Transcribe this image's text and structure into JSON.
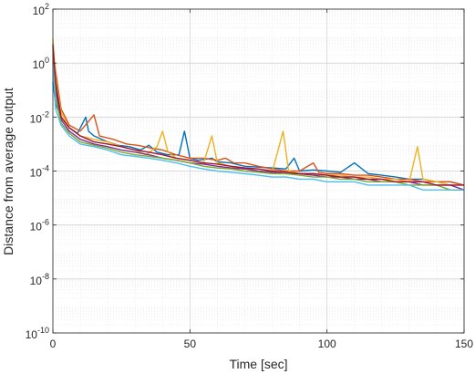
{
  "chart_data": {
    "type": "line",
    "title": "",
    "xlabel": "Time [sec]",
    "ylabel": "Distance from average output",
    "xlim": [
      0,
      150
    ],
    "ylim": [
      1e-10,
      100
    ],
    "yscale": "log",
    "grid": true,
    "minor_grid": true,
    "xticks": [
      0,
      50,
      100,
      150
    ],
    "xtick_labels": [
      "0",
      "50",
      "100",
      "150"
    ],
    "yticks": [
      1e-10,
      1e-08,
      1e-06,
      0.0001,
      0.01,
      1,
      100
    ],
    "ytick_labels": [
      {
        "base": "10",
        "exp": "-10"
      },
      {
        "base": "10",
        "exp": "-8"
      },
      {
        "base": "10",
        "exp": "-6"
      },
      {
        "base": "10",
        "exp": "-4"
      },
      {
        "base": "10",
        "exp": "-2"
      },
      {
        "base": "10",
        "exp": "0"
      },
      {
        "base": "10",
        "exp": "2"
      }
    ],
    "series": [
      {
        "color": "#0072BD",
        "values": [
          [
            0,
            0.2
          ],
          [
            1,
            0.03
          ],
          [
            3,
            0.01
          ],
          [
            6,
            0.004
          ],
          [
            9,
            0.0025
          ],
          [
            12,
            0.01
          ],
          [
            13,
            0.003
          ],
          [
            15,
            0.002
          ],
          [
            20,
            0.0012
          ],
          [
            24,
            0.0009
          ],
          [
            28,
            0.0008
          ],
          [
            32,
            0.0006
          ],
          [
            35,
            0.0009
          ],
          [
            38,
            0.0005
          ],
          [
            42,
            0.0004
          ],
          [
            46,
            0.0004
          ],
          [
            48,
            0.003
          ],
          [
            50,
            0.0003
          ],
          [
            53,
            0.00025
          ],
          [
            58,
            0.0003
          ],
          [
            60,
            0.00022
          ],
          [
            65,
            0.0002
          ],
          [
            70,
            0.00015
          ],
          [
            75,
            0.00014
          ],
          [
            80,
            0.00013
          ],
          [
            85,
            0.00012
          ],
          [
            88,
            0.0003
          ],
          [
            90,
            0.0001
          ],
          [
            95,
            0.00011
          ],
          [
            100,
            0.0001
          ],
          [
            105,
            9e-05
          ],
          [
            110,
            0.0002
          ],
          [
            115,
            8e-05
          ],
          [
            120,
            7e-05
          ],
          [
            125,
            6e-05
          ],
          [
            130,
            5e-05
          ],
          [
            135,
            5e-05
          ],
          [
            140,
            4e-05
          ],
          [
            145,
            4e-05
          ],
          [
            150,
            3e-05
          ]
        ]
      },
      {
        "color": "#D95319",
        "values": [
          [
            0,
            3
          ],
          [
            1,
            0.5
          ],
          [
            3,
            0.02
          ],
          [
            6,
            0.005
          ],
          [
            10,
            0.003
          ],
          [
            15,
            0.012
          ],
          [
            17,
            0.002
          ],
          [
            22,
            0.0015
          ],
          [
            27,
            0.001
          ],
          [
            31,
            0.0009
          ],
          [
            36,
            0.0007
          ],
          [
            40,
            0.0006
          ],
          [
            45,
            0.0004
          ],
          [
            50,
            0.0003
          ],
          [
            55,
            0.0003
          ],
          [
            60,
            0.00025
          ],
          [
            63,
            0.0003
          ],
          [
            66,
            0.0002
          ],
          [
            70,
            0.0002
          ],
          [
            75,
            0.00015
          ],
          [
            80,
            0.00012
          ],
          [
            85,
            0.0001
          ],
          [
            90,
            0.0001
          ],
          [
            95,
            0.0002
          ],
          [
            97,
            9e-05
          ],
          [
            100,
            8e-05
          ],
          [
            105,
            8e-05
          ],
          [
            110,
            7e-05
          ],
          [
            115,
            7e-05
          ],
          [
            120,
            6e-05
          ],
          [
            125,
            5e-05
          ],
          [
            130,
            5e-05
          ],
          [
            135,
            4e-05
          ],
          [
            140,
            4e-05
          ],
          [
            145,
            4e-05
          ],
          [
            150,
            3e-05
          ]
        ]
      },
      {
        "color": "#EDB120",
        "values": [
          [
            0,
            8
          ],
          [
            1,
            0.3
          ],
          [
            3,
            0.015
          ],
          [
            6,
            0.004
          ],
          [
            10,
            0.002
          ],
          [
            15,
            0.0015
          ],
          [
            20,
            0.0012
          ],
          [
            25,
            0.0008
          ],
          [
            30,
            0.0006
          ],
          [
            34,
            0.0004
          ],
          [
            38,
            0.0008
          ],
          [
            40,
            0.003
          ],
          [
            42,
            0.0005
          ],
          [
            45,
            0.0003
          ],
          [
            50,
            0.00025
          ],
          [
            55,
            0.0002
          ],
          [
            58,
            0.002
          ],
          [
            60,
            0.0002
          ],
          [
            65,
            0.00015
          ],
          [
            70,
            0.00013
          ],
          [
            75,
            0.0001
          ],
          [
            80,
            9e-05
          ],
          [
            84,
            0.003
          ],
          [
            86,
            0.0001
          ],
          [
            90,
            8e-05
          ],
          [
            95,
            8e-05
          ],
          [
            100,
            7e-05
          ],
          [
            105,
            7e-05
          ],
          [
            110,
            6e-05
          ],
          [
            115,
            6e-05
          ],
          [
            120,
            5e-05
          ],
          [
            125,
            5e-05
          ],
          [
            130,
            4e-05
          ],
          [
            133,
            0.0008
          ],
          [
            135,
            5e-05
          ],
          [
            140,
            4e-05
          ],
          [
            145,
            3e-05
          ],
          [
            150,
            3e-05
          ]
        ]
      },
      {
        "color": "#7E2F8E",
        "values": [
          [
            0,
            5
          ],
          [
            1,
            0.1
          ],
          [
            3,
            0.008
          ],
          [
            6,
            0.003
          ],
          [
            10,
            0.0015
          ],
          [
            15,
            0.001
          ],
          [
            20,
            0.0008
          ],
          [
            25,
            0.0006
          ],
          [
            30,
            0.0005
          ],
          [
            35,
            0.0004
          ],
          [
            40,
            0.0003
          ],
          [
            45,
            0.00025
          ],
          [
            50,
            0.0002
          ],
          [
            55,
            0.00018
          ],
          [
            60,
            0.00015
          ],
          [
            65,
            0.00013
          ],
          [
            70,
            0.00012
          ],
          [
            75,
            0.0001
          ],
          [
            80,
            9e-05
          ],
          [
            85,
            8e-05
          ],
          [
            90,
            8e-05
          ],
          [
            95,
            7e-05
          ],
          [
            100,
            6e-05
          ],
          [
            105,
            6e-05
          ],
          [
            110,
            5e-05
          ],
          [
            115,
            5e-05
          ],
          [
            120,
            4e-05
          ],
          [
            125,
            4e-05
          ],
          [
            130,
            4e-05
          ],
          [
            135,
            3e-05
          ],
          [
            140,
            3e-05
          ],
          [
            145,
            3e-05
          ],
          [
            150,
            2e-05
          ]
        ]
      },
      {
        "color": "#77AC30",
        "values": [
          [
            0,
            2
          ],
          [
            1,
            0.05
          ],
          [
            3,
            0.006
          ],
          [
            6,
            0.0025
          ],
          [
            10,
            0.0012
          ],
          [
            15,
            0.0009
          ],
          [
            20,
            0.0007
          ],
          [
            25,
            0.0005
          ],
          [
            30,
            0.0004
          ],
          [
            35,
            0.00035
          ],
          [
            40,
            0.0003
          ],
          [
            45,
            0.00025
          ],
          [
            50,
            0.0002
          ],
          [
            55,
            0.00015
          ],
          [
            60,
            0.00013
          ],
          [
            65,
            0.00012
          ],
          [
            70,
            0.0001
          ],
          [
            75,
            9e-05
          ],
          [
            80,
            8e-05
          ],
          [
            85,
            8e-05
          ],
          [
            90,
            7e-05
          ],
          [
            95,
            6e-05
          ],
          [
            100,
            6e-05
          ],
          [
            105,
            5e-05
          ],
          [
            110,
            5e-05
          ],
          [
            115,
            4e-05
          ],
          [
            120,
            4e-05
          ],
          [
            125,
            4e-05
          ],
          [
            130,
            3e-05
          ],
          [
            135,
            3e-05
          ],
          [
            140,
            3e-05
          ],
          [
            145,
            2e-05
          ],
          [
            150,
            2e-05
          ]
        ]
      },
      {
        "color": "#4DBEEE",
        "values": [
          [
            0,
            1
          ],
          [
            1,
            0.02
          ],
          [
            3,
            0.005
          ],
          [
            6,
            0.002
          ],
          [
            10,
            0.001
          ],
          [
            15,
            0.0008
          ],
          [
            20,
            0.0006
          ],
          [
            25,
            0.0004
          ],
          [
            30,
            0.00035
          ],
          [
            35,
            0.0003
          ],
          [
            40,
            0.00025
          ],
          [
            45,
            0.0002
          ],
          [
            50,
            0.00015
          ],
          [
            55,
            0.00012
          ],
          [
            60,
            0.0001
          ],
          [
            65,
            9e-05
          ],
          [
            70,
            8e-05
          ],
          [
            75,
            7e-05
          ],
          [
            80,
            6e-05
          ],
          [
            85,
            6e-05
          ],
          [
            90,
            5e-05
          ],
          [
            95,
            5e-05
          ],
          [
            100,
            4e-05
          ],
          [
            105,
            4e-05
          ],
          [
            110,
            4e-05
          ],
          [
            115,
            3e-05
          ],
          [
            120,
            3e-05
          ],
          [
            125,
            3e-05
          ],
          [
            130,
            3e-05
          ],
          [
            135,
            2e-05
          ],
          [
            140,
            2e-05
          ],
          [
            145,
            2e-05
          ],
          [
            150,
            2e-05
          ]
        ]
      },
      {
        "color": "#A2142F",
        "values": [
          [
            0,
            4
          ],
          [
            1,
            0.2
          ],
          [
            3,
            0.01
          ],
          [
            6,
            0.004
          ],
          [
            10,
            0.002
          ],
          [
            15,
            0.0012
          ],
          [
            20,
            0.001
          ],
          [
            25,
            0.0008
          ],
          [
            30,
            0.0006
          ],
          [
            35,
            0.0005
          ],
          [
            40,
            0.0004
          ],
          [
            45,
            0.0003
          ],
          [
            50,
            0.00025
          ],
          [
            55,
            0.0002
          ],
          [
            60,
            0.00018
          ],
          [
            65,
            0.00015
          ],
          [
            70,
            0.00013
          ],
          [
            75,
            0.00012
          ],
          [
            80,
            0.0001
          ],
          [
            85,
            9e-05
          ],
          [
            90,
            8e-05
          ],
          [
            95,
            8e-05
          ],
          [
            100,
            7e-05
          ],
          [
            105,
            6e-05
          ],
          [
            110,
            6e-05
          ],
          [
            115,
            5e-05
          ],
          [
            120,
            5e-05
          ],
          [
            125,
            4e-05
          ],
          [
            130,
            4e-05
          ],
          [
            135,
            4e-05
          ],
          [
            140,
            3e-05
          ],
          [
            145,
            3e-05
          ],
          [
            150,
            3e-05
          ]
        ]
      }
    ]
  }
}
